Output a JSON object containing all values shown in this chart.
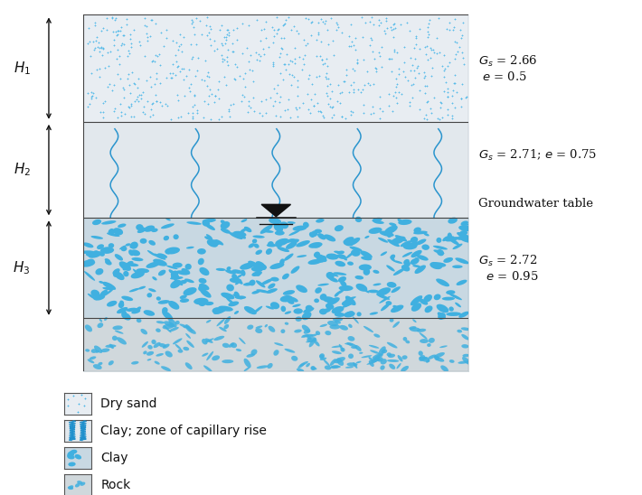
{
  "fig_width": 7.1,
  "fig_height": 5.48,
  "dpi": 100,
  "color_dry_sand": "#e8edf2",
  "color_capillary": "#e2e8ed",
  "color_clay": "#c8d8e2",
  "color_rock": "#d0d8dc",
  "color_blue_dot": "#4db8e8",
  "color_blue_line": "#2090cc",
  "color_blue_blob": "#40b0e0",
  "color_border": "#444444",
  "label_Gs1": "$G_s$ = 2.66\n $e$ = 0.5",
  "label_Gs2": "$G_s$ = 2.71; $e$ = 0.75",
  "label_gwt": "Groundwater table",
  "label_Gs3": "$G_s$ = 2.72\n  $e$ = 0.95",
  "label_H1": "$H_1$",
  "label_H2": "$H_2$",
  "label_H3": "$H_3$",
  "legend_dry_sand": "Dry sand",
  "legend_capillary": "Clay; zone of capillary rise",
  "legend_clay": "Clay",
  "legend_rock": "Rock"
}
